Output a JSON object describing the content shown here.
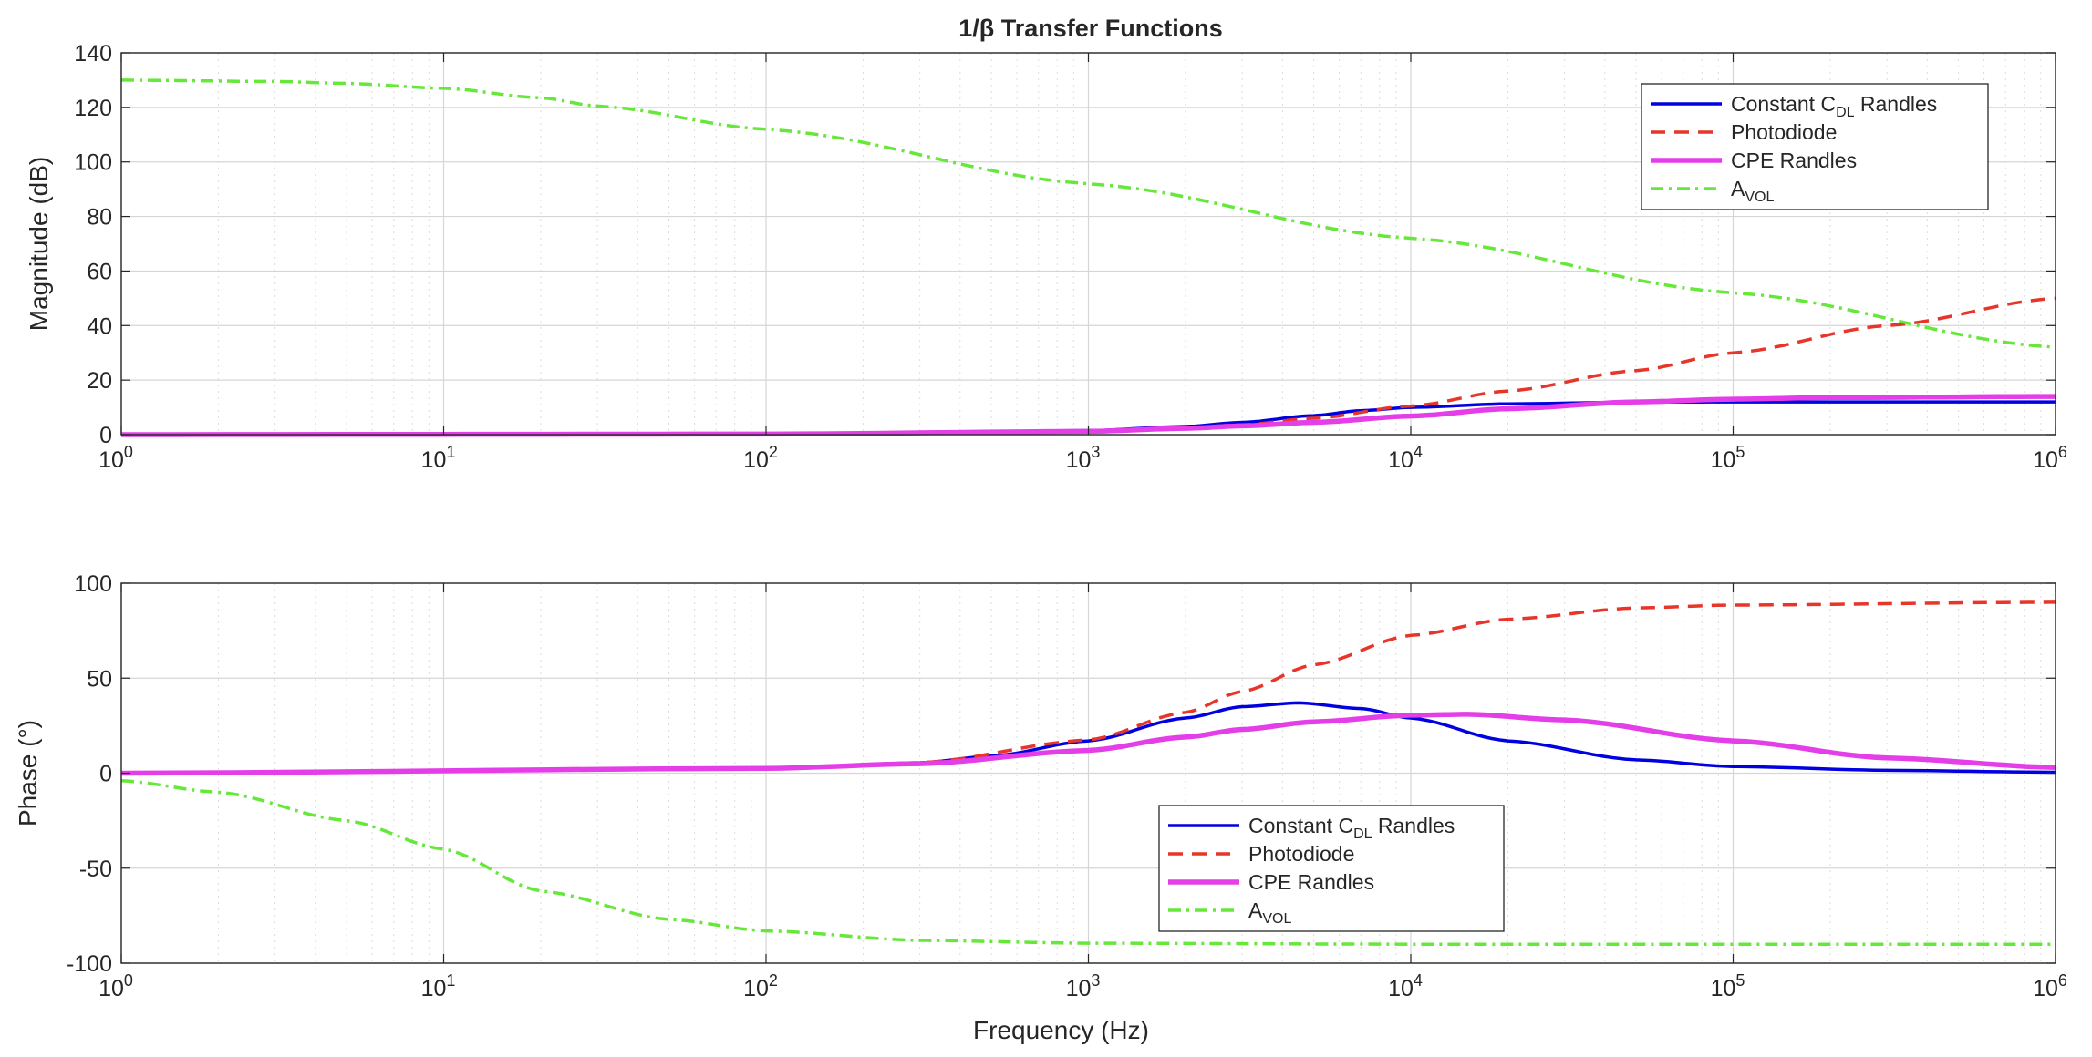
{
  "chart_data": [
    {
      "type": "line",
      "id": "magnitude",
      "title": "1/β Transfer Functions",
      "xlabel": "",
      "ylabel": "Magnitude (dB)",
      "xscale": "log",
      "xlim": [
        1,
        1000000
      ],
      "ylim": [
        0,
        140
      ],
      "yticks": [
        0,
        20,
        40,
        60,
        80,
        100,
        120,
        140
      ],
      "xticks": [
        {
          "base": "10",
          "exp": "0"
        },
        {
          "base": "10",
          "exp": "1"
        },
        {
          "base": "10",
          "exp": "2"
        },
        {
          "base": "10",
          "exp": "3"
        },
        {
          "base": "10",
          "exp": "4"
        },
        {
          "base": "10",
          "exp": "5"
        },
        {
          "base": "10",
          "exp": "6"
        }
      ],
      "grid": true,
      "legend_position": "top-right",
      "series": [
        {
          "name": "Constant C_DL Randles",
          "legend": {
            "main": "Constant  C",
            "sub": "DL",
            "tail": "  Randles"
          },
          "color": "#0000e0",
          "dash": "solid",
          "x": [
            1,
            100,
            300,
            1000,
            2000,
            3000,
            5000,
            7000,
            10000,
            20000,
            50000,
            100000,
            1000000
          ],
          "y": [
            0,
            0.2,
            0.5,
            1.5,
            3.0,
            4.5,
            7.0,
            8.8,
            10.0,
            11.3,
            11.9,
            12.0,
            12.0
          ]
        },
        {
          "name": "Photodiode",
          "legend": {
            "main": "Photodiode",
            "sub": "",
            "tail": ""
          },
          "color": "#e8352a",
          "dash": "dashed",
          "x": [
            1,
            100,
            1000,
            2000,
            3000,
            5000,
            10000,
            20000,
            50000,
            100000,
            300000,
            1000000
          ],
          "y": [
            0,
            0.1,
            1.0,
            2.5,
            3.6,
            6.0,
            10.5,
            16.0,
            23.5,
            30.0,
            40.0,
            50.0
          ]
        },
        {
          "name": "CPE Randles",
          "legend": {
            "main": "CPE Randles",
            "sub": "",
            "tail": ""
          },
          "color": "#e43ee8",
          "dash": "solid-thick",
          "x": [
            1,
            100,
            1000,
            2000,
            3000,
            5000,
            10000,
            20000,
            50000,
            100000,
            200000,
            1000000
          ],
          "y": [
            0,
            0.2,
            1.2,
            2.3,
            3.2,
            4.5,
            6.8,
            9.5,
            12.0,
            13.0,
            13.6,
            14.0
          ]
        },
        {
          "name": "A_VOL",
          "legend": {
            "main": "A",
            "sub": "VOL",
            "tail": ""
          },
          "color": "#66e83a",
          "dash": "dashdot",
          "x": [
            1,
            3,
            5,
            10,
            20,
            30,
            100,
            1000,
            10000,
            100000,
            1000000
          ],
          "y": [
            130,
            129.5,
            128.8,
            127,
            123.5,
            120.5,
            112,
            92,
            72,
            52,
            32
          ]
        }
      ]
    },
    {
      "type": "line",
      "id": "phase",
      "title": "",
      "xlabel": "Frequency (Hz)",
      "ylabel": "Phase (°)",
      "xscale": "log",
      "xlim": [
        1,
        1000000
      ],
      "ylim": [
        -100,
        100
      ],
      "yticks": [
        -100,
        -50,
        0,
        50,
        100
      ],
      "xticks": [
        {
          "base": "10",
          "exp": "0"
        },
        {
          "base": "10",
          "exp": "1"
        },
        {
          "base": "10",
          "exp": "2"
        },
        {
          "base": "10",
          "exp": "3"
        },
        {
          "base": "10",
          "exp": "4"
        },
        {
          "base": "10",
          "exp": "5"
        },
        {
          "base": "10",
          "exp": "6"
        }
      ],
      "grid": true,
      "legend_position": "bottom-center",
      "series": [
        {
          "name": "Constant C_DL Randles",
          "legend": {
            "main": "Constant  C",
            "sub": "DL",
            "tail": "  Randles"
          },
          "color": "#0000e0",
          "dash": "solid",
          "x": [
            1,
            100,
            300,
            500,
            1000,
            2000,
            3000,
            4500,
            7000,
            10000,
            20000,
            50000,
            100000,
            300000,
            1000000
          ],
          "y": [
            0,
            2.5,
            5.5,
            9.0,
            17.0,
            29.0,
            35.0,
            37.0,
            34.0,
            29.0,
            17.0,
            7.0,
            3.5,
            1.5,
            0.5
          ]
        },
        {
          "name": "Photodiode",
          "legend": {
            "main": "Photodiode",
            "sub": "",
            "tail": ""
          },
          "color": "#e8352a",
          "dash": "dashed",
          "x": [
            1,
            100,
            300,
            1000,
            2000,
            3000,
            5000,
            10000,
            20000,
            50000,
            100000,
            1000000
          ],
          "y": [
            0,
            2.5,
            5.5,
            17.5,
            32.0,
            43.0,
            57.0,
            72.5,
            81.0,
            87.0,
            88.5,
            90.0
          ]
        },
        {
          "name": "CPE Randles",
          "legend": {
            "main": "CPE Randles",
            "sub": "",
            "tail": ""
          },
          "color": "#e43ee8",
          "dash": "solid-thick",
          "x": [
            1,
            100,
            300,
            1000,
            2000,
            3000,
            5000,
            10000,
            15000,
            30000,
            100000,
            300000,
            1000000
          ],
          "y": [
            0,
            2.5,
            5.0,
            12.0,
            19.0,
            23.0,
            27.0,
            30.5,
            31.0,
            28.0,
            17.0,
            8.0,
            3.0
          ]
        },
        {
          "name": "A_VOL",
          "legend": {
            "main": "A",
            "sub": "VOL",
            "tail": ""
          },
          "color": "#66e83a",
          "dash": "dashdot",
          "x": [
            1,
            2,
            5,
            10,
            20,
            50,
            100,
            300,
            1000,
            10000,
            1000000
          ],
          "y": [
            -4,
            -10,
            -25,
            -40,
            -62,
            -77,
            -83,
            -88,
            -89.5,
            -90,
            -90
          ]
        }
      ]
    }
  ]
}
